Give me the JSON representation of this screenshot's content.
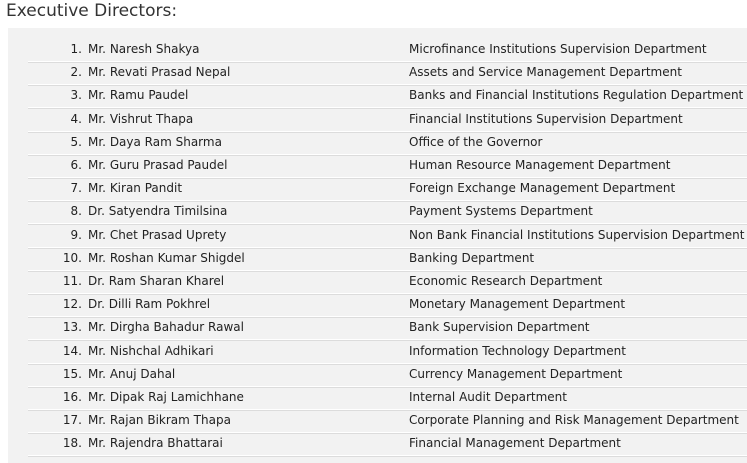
{
  "header": {
    "title": "Executive Directors:"
  },
  "table": {
    "rows": [
      [
        "1.",
        "Mr. Naresh Shakya",
        "Microfinance Institutions Supervision Department"
      ],
      [
        "2.",
        "Mr. Revati Prasad Nepal",
        "Assets and Service Management Department"
      ],
      [
        "3.",
        "Mr. Ramu Paudel",
        "Banks and Financial Institutions Regulation Department"
      ],
      [
        "4.",
        "Mr. Vishrut Thapa",
        "Financial Institutions Supervision Department"
      ],
      [
        "5.",
        "Mr. Daya Ram Sharma",
        "Office of the Governor"
      ],
      [
        "6.",
        "Mr. Guru Prasad Paudel",
        "Human Resource Management Department"
      ],
      [
        "7.",
        "Mr. Kiran Pandit",
        "Foreign Exchange Management Department"
      ],
      [
        "8.",
        "Dr. Satyendra Timilsina",
        "Payment Systems Department"
      ],
      [
        "9.",
        "Mr. Chet Prasad Uprety",
        "Non Bank Financial Institutions Supervision Department"
      ],
      [
        "10.",
        "Mr. Roshan Kumar Shigdel",
        "Banking Department"
      ],
      [
        "11.",
        "Dr. Ram Sharan Kharel",
        "Economic Research Department"
      ],
      [
        "12.",
        "Dr. Dilli Ram Pokhrel",
        "Monetary Management Department"
      ],
      [
        "13.",
        "Mr. Dirgha Bahadur Rawal",
        "Bank Supervision Department"
      ],
      [
        "14.",
        "Mr. Nishchal Adhikari",
        "Information Technology Department"
      ],
      [
        "15.",
        "Mr. Anuj Dahal",
        "Currency Management Department"
      ],
      [
        "16.",
        "Mr. Dipak Raj Lamichhane",
        "Internal Audit Department"
      ],
      [
        "17.",
        "Mr. Rajan Bikram Thapa",
        "Corporate Planning and Risk Management Department"
      ],
      [
        "18.",
        "Mr. Rajendra Bhattarai",
        "Financial Management Department"
      ]
    ]
  }
}
